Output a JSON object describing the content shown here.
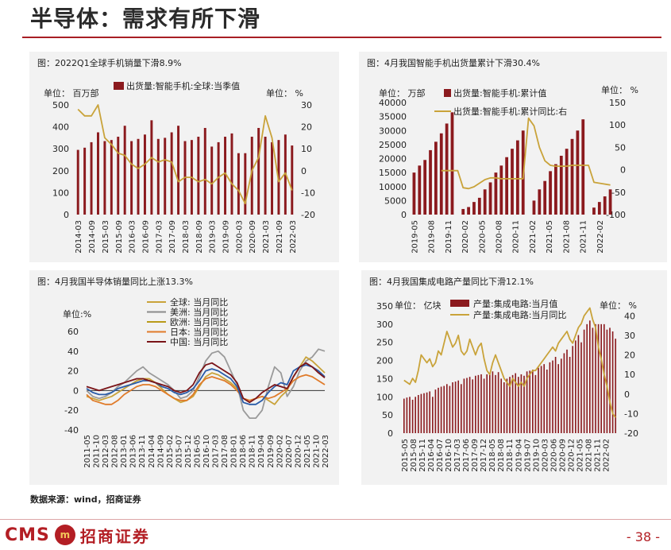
{
  "page": {
    "title": "半导体：需求有所下滑",
    "source": "数据来源：wind，招商证券",
    "page_number": "- 38 -",
    "logo_text": "CMS",
    "logo_mark": "m",
    "logo_cn": "招商证券"
  },
  "colors": {
    "bar": "#8b1a1e",
    "gold": "#c9a33a",
    "gray": "#9a9a9a",
    "blue": "#2a5ca8",
    "orange": "#e07b2a",
    "darkred": "#7a1418",
    "accent": "#a81e24"
  },
  "chart_data": [
    {
      "type": "bar",
      "title": "图：2022Q1全球手机销量下滑8.9%",
      "left_unit": "单位： 百万部",
      "right_unit": "单位： %",
      "legend": [
        "出货量:智能手机:全球:当季值"
      ],
      "categories": [
        "2014-03",
        "2014-06",
        "2014-09",
        "2014-12",
        "2015-03",
        "2015-06",
        "2015-09",
        "2015-12",
        "2016-03",
        "2016-06",
        "2016-09",
        "2016-12",
        "2017-03",
        "2017-06",
        "2017-09",
        "2017-12",
        "2018-03",
        "2018-06",
        "2018-09",
        "2018-12",
        "2019-03",
        "2019-06",
        "2019-09",
        "2019-12",
        "2020-03",
        "2020-06",
        "2020-09",
        "2020-12",
        "2021-03",
        "2021-06",
        "2021-09",
        "2021-12",
        "2022-03"
      ],
      "tick_labels": [
        "2014-03",
        "2014-09",
        "2015-03",
        "2015-09",
        "2016-03",
        "2016-09",
        "2017-03",
        "2017-09",
        "2018-03",
        "2018-09",
        "2019-03",
        "2019-09",
        "2020-03",
        "2020-09",
        "2021-03",
        "2021-09",
        "2022-03"
      ],
      "bars": [
        295,
        305,
        330,
        375,
        335,
        340,
        355,
        405,
        335,
        345,
        365,
        430,
        345,
        350,
        375,
        405,
        335,
        340,
        355,
        395,
        310,
        330,
        355,
        370,
        280,
        280,
        355,
        395,
        355,
        330,
        340,
        365,
        315
      ],
      "line": [
        28,
        25,
        25,
        30,
        15,
        12,
        8,
        7,
        3,
        1,
        3,
        6,
        4,
        5,
        4,
        -5,
        -3,
        -3,
        -5,
        -4,
        -6,
        -3,
        -1,
        -6,
        -9,
        -15,
        0,
        6,
        25,
        15,
        -5,
        -1,
        -9
      ],
      "yleft": [
        0,
        500
      ],
      "yright": [
        -20,
        30
      ],
      "yleft_ticks": [
        "0",
        "100",
        "200",
        "300",
        "400",
        "500"
      ],
      "yright_ticks": [
        "-20",
        "-10",
        "0",
        "10",
        "20",
        "30"
      ]
    },
    {
      "type": "bar",
      "title": "图：4月我国智能手机出货量累计下滑30.4%",
      "left_unit": "单位： 万部",
      "right_unit": "单位： %",
      "legend": [
        "出货量:智能手机:累计值",
        "出货量:智能手机:累计同比:右"
      ],
      "tick_labels": [
        "2019-05",
        "2019-08",
        "2019-11",
        "2020-02",
        "2020-05",
        "2020-08",
        "2020-11",
        "2021-02",
        "2021-05",
        "2021-08",
        "2021-11",
        "2022-02"
      ],
      "bars": [
        15000,
        17500,
        19500,
        23000,
        26000,
        29000,
        32500,
        36500,
        null,
        2000,
        2700,
        4500,
        6000,
        9000,
        11500,
        15000,
        17500,
        20500,
        23500,
        26500,
        30000,
        null,
        5000,
        9000,
        12000,
        15500,
        18000,
        21000,
        23500,
        27000,
        30000,
        34000,
        null,
        2500,
        4500,
        6500,
        9000
      ],
      "line": [
        null,
        null,
        null,
        null,
        null,
        -2,
        -2,
        -2,
        -2,
        -40,
        -42,
        -38,
        -30,
        -22,
        -18,
        -18,
        -20,
        -20,
        -20,
        -20,
        -20,
        115,
        98,
        50,
        20,
        10,
        8,
        8,
        8,
        10,
        10,
        10,
        10,
        -28,
        -30,
        -32,
        -34
      ],
      "yleft": [
        0,
        40000
      ],
      "yright": [
        -100,
        150
      ],
      "yleft_ticks": [
        "0",
        "5000",
        "10000",
        "15000",
        "20000",
        "25000",
        "30000",
        "35000",
        "40000"
      ],
      "yright_ticks": [
        "-100",
        "-50",
        "0",
        "50",
        "100",
        "150"
      ]
    },
    {
      "type": "line",
      "title": "图：4月我国半导体销量同比上涨13.3%",
      "left_unit": "单位:%",
      "legend": [
        "全球: 当月同比",
        "美洲: 当月同比",
        "欧洲: 当月同比",
        "日本: 当月同比",
        "中国: 当月同比"
      ],
      "tick_labels": [
        "2011-05",
        "2011-10",
        "2012-03",
        "2012-08",
        "2013-01",
        "2013-06",
        "2013-11",
        "2014-04",
        "2014-09",
        "2015-02",
        "2015-07",
        "2015-12",
        "2016-05",
        "2016-10",
        "2017-03",
        "2017-08",
        "2018-01",
        "2018-06",
        "2018-11",
        "2019-04",
        "2019-09",
        "2020-02",
        "2020-07",
        "2020-12",
        "2021-05",
        "2021-10",
        "2022-03"
      ],
      "ylim": [
        -40,
        60
      ],
      "y_ticks": [
        "-40",
        "-20",
        "0",
        "20",
        "40",
        "60"
      ],
      "series": [
        {
          "name": "全球",
          "values": [
            2,
            -2,
            -4,
            -4,
            -2,
            2,
            4,
            6,
            8,
            10,
            10,
            8,
            4,
            2,
            -2,
            -4,
            -2,
            2,
            10,
            20,
            22,
            20,
            16,
            12,
            4,
            -12,
            -14,
            -14,
            -10,
            -2,
            4,
            8,
            6,
            20,
            24,
            26,
            24,
            20,
            14
          ]
        },
        {
          "name": "美洲",
          "values": [
            0,
            -6,
            -8,
            -6,
            -2,
            4,
            8,
            14,
            20,
            24,
            18,
            14,
            10,
            6,
            0,
            -8,
            -6,
            0,
            14,
            30,
            38,
            40,
            34,
            20,
            6,
            -20,
            -28,
            -28,
            -20,
            4,
            24,
            18,
            -6,
            4,
            20,
            30,
            34,
            42,
            40
          ]
        },
        {
          "name": "欧洲",
          "values": [
            -6,
            -8,
            -10,
            -8,
            -6,
            -2,
            2,
            6,
            10,
            12,
            12,
            8,
            2,
            -4,
            -8,
            -12,
            -10,
            -6,
            4,
            14,
            18,
            16,
            12,
            8,
            2,
            -8,
            -10,
            -8,
            -6,
            -10,
            -14,
            -6,
            0,
            14,
            24,
            34,
            30,
            24,
            18
          ]
        },
        {
          "name": "日本",
          "values": [
            -4,
            -10,
            -12,
            -14,
            -14,
            -10,
            -4,
            0,
            4,
            6,
            6,
            4,
            0,
            -4,
            -8,
            -10,
            -10,
            -4,
            6,
            12,
            14,
            12,
            10,
            6,
            0,
            -8,
            -10,
            -8,
            -6,
            -8,
            -6,
            -2,
            2,
            10,
            14,
            16,
            14,
            10,
            6
          ]
        },
        {
          "name": "中国",
          "values": [
            4,
            2,
            0,
            2,
            4,
            6,
            8,
            10,
            12,
            12,
            10,
            8,
            6,
            4,
            0,
            -2,
            0,
            6,
            18,
            26,
            28,
            24,
            20,
            16,
            8,
            -8,
            -12,
            -8,
            -2,
            2,
            6,
            4,
            2,
            14,
            24,
            28,
            24,
            18,
            13
          ]
        }
      ]
    },
    {
      "type": "bar",
      "title": "图：4月我国集成电路产量同比下滑12.1%",
      "left_unit": "单位： 亿块",
      "right_unit": "单位： %",
      "legend": [
        "产量:集成电路:当月值",
        "产量:集成电路:当月同比"
      ],
      "tick_labels": [
        "2015-05",
        "2015-08",
        "2015-11",
        "2016-04",
        "2016-07",
        "2016-10",
        "2017-03",
        "2017-06",
        "2017-09",
        "2017-12",
        "2018-05",
        "2018-08",
        "2018-11",
        "2019-04",
        "2019-07",
        "2019-10",
        "2020-03",
        "2020-06",
        "2020-09",
        "2020-12",
        "2021-05",
        "2021-08",
        "2021-11",
        "2022-02"
      ],
      "bars": [
        95,
        98,
        100,
        92,
        100,
        105,
        108,
        110,
        112,
        115,
        100,
        120,
        125,
        128,
        130,
        135,
        130,
        140,
        142,
        145,
        135,
        150,
        152,
        155,
        148,
        158,
        160,
        162,
        150,
        162,
        165,
        170,
        160,
        168,
        150,
        140,
        150,
        155,
        160,
        165,
        155,
        162,
        158,
        170,
        172,
        175,
        160,
        180,
        185,
        190,
        175,
        195,
        200,
        210,
        190,
        205,
        220,
        230,
        210,
        240,
        255,
        270,
        250,
        285,
        300,
        310,
        290,
        300,
        300,
        300,
        300,
        285,
        290,
        280,
        260
      ],
      "line": [
        7,
        6,
        5,
        8,
        6,
        12,
        20,
        18,
        16,
        18,
        14,
        16,
        22,
        20,
        26,
        32,
        28,
        24,
        26,
        30,
        22,
        20,
        22,
        28,
        24,
        20,
        24,
        26,
        18,
        12,
        10,
        16,
        20,
        16,
        12,
        8,
        6,
        4,
        8,
        6,
        4,
        6,
        4,
        8,
        10,
        12,
        12,
        14,
        16,
        18,
        20,
        22,
        24,
        22,
        26,
        28,
        30,
        32,
        28,
        26,
        30,
        34,
        36,
        40,
        42,
        44,
        38,
        34,
        24,
        18,
        10,
        4,
        -4,
        -10,
        -12
      ],
      "yleft": [
        0,
        350
      ],
      "yright": [
        -20,
        45
      ],
      "yleft_ticks": [
        "0",
        "50",
        "100",
        "150",
        "200",
        "250",
        "300",
        "350"
      ],
      "yright_ticks": [
        "-20",
        "-10",
        "0",
        "10",
        "20",
        "30",
        "40"
      ]
    }
  ]
}
